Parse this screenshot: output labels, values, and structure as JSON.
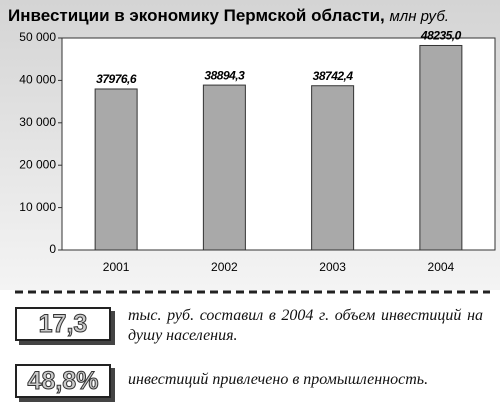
{
  "chart_data": {
    "type": "bar",
    "title": "Инвестиции в экономику Пермской области,",
    "subtitle": "млн руб.",
    "categories": [
      "2001",
      "2002",
      "2003",
      "2004"
    ],
    "values": [
      37976.6,
      38894.3,
      38742.4,
      48235.0
    ],
    "value_labels": [
      "37976,6",
      "38894,3",
      "38742,4",
      "48235,0"
    ],
    "color": "#a9a9a9",
    "ylim": [
      0,
      50000
    ],
    "yticks": [
      0,
      {
        "value": 10000,
        "label": "10 000"
      },
      {
        "value": 20000,
        "label": "20 000"
      },
      {
        "value": 30000,
        "label": "30 000"
      },
      {
        "value": 40000,
        "label": "40 000"
      },
      {
        "value": 50000,
        "label": "50 000"
      }
    ],
    "grid": false
  },
  "facts": [
    {
      "value": "17,3",
      "text": "тыс. руб. составил в 2004 г. объем инвестиций на душу населения."
    },
    {
      "value": "48,8%",
      "text": "инвестиций привлечено в промышленность."
    }
  ]
}
